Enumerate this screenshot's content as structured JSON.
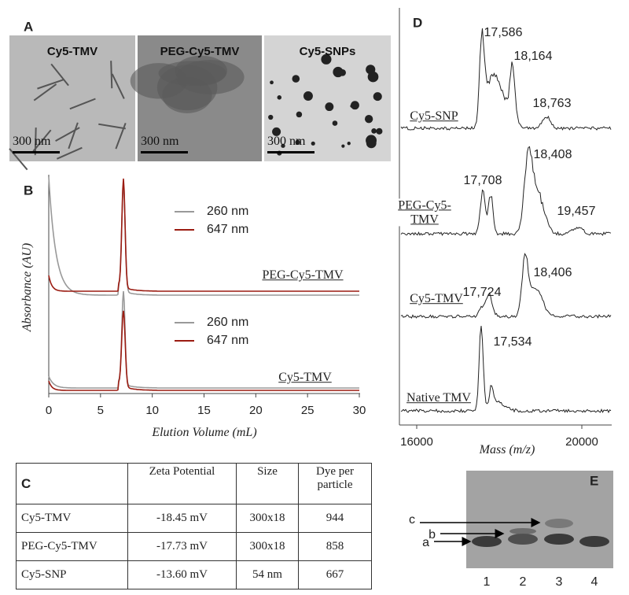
{
  "panels": {
    "a": {
      "label": "A",
      "images": [
        {
          "title": "Cy5-TMV",
          "scale": "300 nm"
        },
        {
          "title": "PEG-Cy5-TMV",
          "scale": "300 nm"
        },
        {
          "title": "Cy5-SNPs",
          "scale": "300 nm"
        }
      ]
    },
    "b": {
      "label": "B",
      "x_axis_label": "Elution Volume (mL)",
      "y_axis_label": "Absorbance (AU)",
      "x_ticks": [
        0,
        5,
        10,
        15,
        20,
        25,
        30
      ],
      "traces": [
        {
          "name": "PEG-Cy5-TMV",
          "legend": [
            "260 nm",
            "647 nm"
          ]
        },
        {
          "name": "Cy5-TMV",
          "legend": [
            "260 nm",
            "647 nm"
          ]
        }
      ]
    },
    "c": {
      "label": "C",
      "table": {
        "header": [
          "Zeta Potential",
          "Size",
          "Dye per particle"
        ],
        "rows": [
          [
            "Cy5-TMV",
            "-18.45 mV",
            "300x18",
            "944"
          ],
          [
            "PEG-Cy5-TMV",
            "-17.73 mV",
            "300x18",
            "858"
          ],
          [
            "Cy5-SNP",
            "-13.60 mV",
            "54 nm",
            "667"
          ]
        ]
      }
    },
    "d": {
      "label": "D",
      "x_axis_label": "Mass (m/z)",
      "x_ticks": [
        "16000",
        "20000"
      ],
      "spectra": [
        {
          "name": "Cy5-SNP",
          "peaks": [
            "17,586",
            "18,164",
            "18,763"
          ]
        },
        {
          "name": "PEG-Cy5-TMV",
          "peaks": [
            "17,708",
            "18,408",
            "19,457"
          ]
        },
        {
          "name": "Cy5-TMV",
          "peaks": [
            "17,724",
            "18,406"
          ]
        },
        {
          "name": "Native TMV",
          "peaks": [
            "17,534"
          ]
        }
      ]
    },
    "e": {
      "label": "E",
      "bands": [
        "a",
        "b",
        "c"
      ],
      "lanes": [
        "1",
        "2",
        "3",
        "4"
      ]
    }
  }
}
